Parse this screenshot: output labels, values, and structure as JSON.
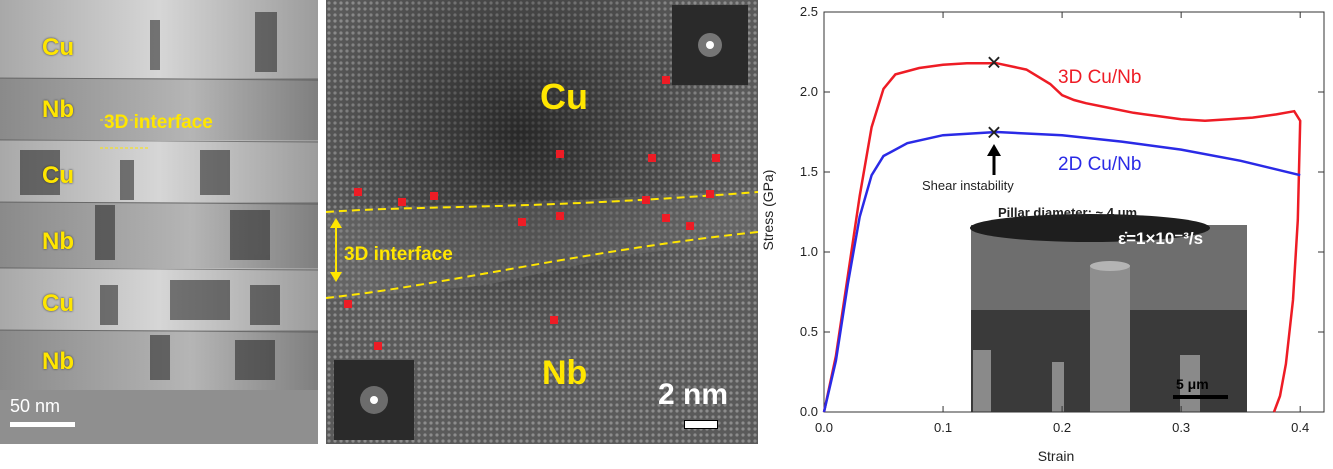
{
  "tem_panel": {
    "layers": [
      "Cu",
      "Nb",
      "Cu",
      "Nb",
      "Cu",
      "Nb"
    ],
    "interface_label": "3D interface",
    "scale_label": "50 nm"
  },
  "hrtem_panel": {
    "cu_label": "Cu",
    "nb_label": "Nb",
    "interface_label": "3D interface",
    "scale_label": "2 nm"
  },
  "chart_data": {
    "type": "line",
    "xlabel": "Strain",
    "ylabel": "Stress (GPa)",
    "xlim": [
      0.0,
      0.42
    ],
    "ylim": [
      0.0,
      2.5
    ],
    "x_ticks": [
      "0.0",
      "0.1",
      "0.2",
      "0.3",
      "0.4"
    ],
    "y_ticks": [
      "0.0",
      "0.5",
      "1.0",
      "1.5",
      "2.0",
      "2.5"
    ],
    "series": [
      {
        "name": "3D Cu/Nb",
        "color": "#ee1c25",
        "points": [
          [
            0.0,
            0.0
          ],
          [
            0.01,
            0.35
          ],
          [
            0.02,
            0.85
          ],
          [
            0.03,
            1.35
          ],
          [
            0.04,
            1.78
          ],
          [
            0.05,
            2.02
          ],
          [
            0.06,
            2.11
          ],
          [
            0.08,
            2.15
          ],
          [
            0.1,
            2.17
          ],
          [
            0.12,
            2.18
          ],
          [
            0.145,
            2.18
          ],
          [
            0.17,
            2.14
          ],
          [
            0.19,
            2.05
          ],
          [
            0.2,
            1.98
          ],
          [
            0.21,
            1.95
          ],
          [
            0.22,
            1.93
          ],
          [
            0.24,
            1.9
          ],
          [
            0.26,
            1.87
          ],
          [
            0.28,
            1.85
          ],
          [
            0.3,
            1.83
          ],
          [
            0.32,
            1.82
          ],
          [
            0.34,
            1.83
          ],
          [
            0.36,
            1.84
          ],
          [
            0.38,
            1.86
          ],
          [
            0.395,
            1.88
          ],
          [
            0.4,
            1.82
          ],
          [
            0.398,
            1.2
          ],
          [
            0.394,
            0.7
          ],
          [
            0.388,
            0.3
          ],
          [
            0.383,
            0.1
          ],
          [
            0.378,
            0.0
          ]
        ]
      },
      {
        "name": "2D Cu/Nb",
        "color": "#2a2ae6",
        "points": [
          [
            0.0,
            0.0
          ],
          [
            0.01,
            0.32
          ],
          [
            0.02,
            0.8
          ],
          [
            0.03,
            1.22
          ],
          [
            0.04,
            1.48
          ],
          [
            0.05,
            1.6
          ],
          [
            0.07,
            1.68
          ],
          [
            0.1,
            1.73
          ],
          [
            0.145,
            1.75
          ],
          [
            0.2,
            1.73
          ],
          [
            0.25,
            1.69
          ],
          [
            0.3,
            1.64
          ],
          [
            0.35,
            1.57
          ],
          [
            0.4,
            1.48
          ]
        ]
      }
    ],
    "annotations": {
      "peak_marker": "×",
      "shear_label": "Shear instability",
      "pillar_label": "Pillar diameter: ~ 4 μm",
      "strain_rate_label": "ε̇=1×10⁻³/s",
      "inset_scale_label": "5 μm"
    },
    "grid": false
  }
}
